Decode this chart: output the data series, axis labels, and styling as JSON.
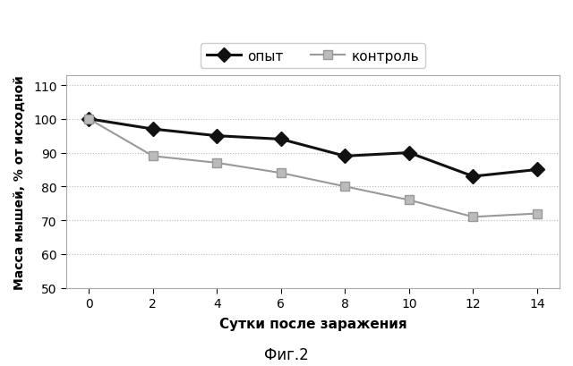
{
  "x": [
    0,
    2,
    4,
    6,
    8,
    10,
    12,
    14
  ],
  "opyt": [
    100,
    97,
    95,
    94,
    89,
    90,
    83,
    85
  ],
  "kontrol": [
    100,
    89,
    87,
    84,
    80,
    76,
    71,
    72
  ],
  "xlabel": "Сутки после заражения",
  "ylabel": "Масса мышей, % от исходной",
  "caption": "Фиг.2",
  "legend_opyt": "опыт",
  "legend_kontrol": "контроль",
  "ylim": [
    50,
    113
  ],
  "yticks": [
    50,
    60,
    70,
    80,
    90,
    100,
    110
  ],
  "xticks": [
    0,
    2,
    4,
    6,
    8,
    10,
    12,
    14
  ],
  "line_color_opyt": "#111111",
  "line_color_kontrol": "#999999",
  "marker_color_kontrol": "#bbbbbb",
  "background_color": "#ffffff",
  "grid_color": "#bbbbbb",
  "xlabel_fontsize": 11,
  "ylabel_fontsize": 10,
  "tick_fontsize": 10,
  "legend_fontsize": 11,
  "caption_fontsize": 12
}
